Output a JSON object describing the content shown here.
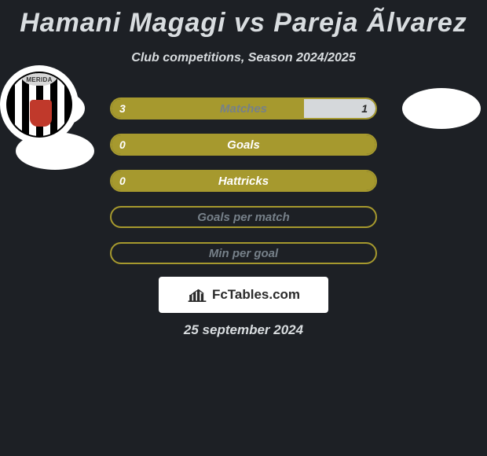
{
  "title": "Hamani Magagi vs Pareja Ãlvarez",
  "subtitle": "Club competitions, Season 2024/2025",
  "date": "25 september 2024",
  "branding": "FcTables.com",
  "colors": {
    "background": "#1d2025",
    "text": "#d9dde0",
    "fill_main": "#a6992e",
    "border": "#a6992e",
    "fill_secondary": "#d5d8db",
    "neutral_text": "#768089"
  },
  "badges": {
    "top_left": {
      "shape": "ellipse",
      "name": "player1-club"
    },
    "top_right": {
      "shape": "ellipse",
      "name": "player2-club"
    },
    "bottom_left": {
      "shape": "ellipse",
      "name": "player1-national"
    },
    "bottom_right": {
      "shape": "circle-crest",
      "label": "MERIDA",
      "name": "player2-national"
    }
  },
  "rows": [
    {
      "label": "Matches",
      "left_value": "3",
      "right_value": "1",
      "left_pct": 73,
      "right_pct": 27,
      "split": true
    },
    {
      "label": "Goals",
      "left_value": "0",
      "right_value": "",
      "left_pct": 100,
      "right_pct": 0,
      "split": false
    },
    {
      "label": "Hattricks",
      "left_value": "0",
      "right_value": "",
      "left_pct": 100,
      "right_pct": 0,
      "split": false
    },
    {
      "label": "Goals per match",
      "left_value": "",
      "right_value": "",
      "left_pct": 0,
      "right_pct": 0,
      "split": false,
      "neutral": true
    },
    {
      "label": "Min per goal",
      "left_value": "",
      "right_value": "",
      "left_pct": 0,
      "right_pct": 0,
      "split": false,
      "neutral": true
    }
  ]
}
